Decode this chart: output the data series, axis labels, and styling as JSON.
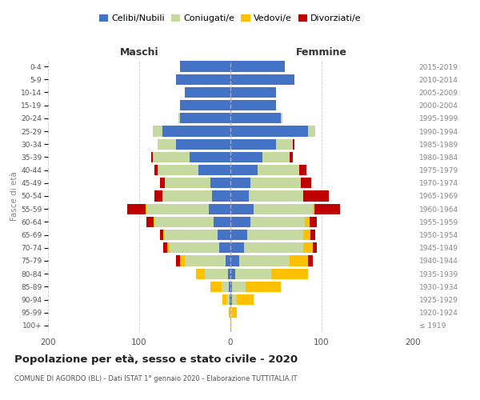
{
  "age_groups": [
    "100+",
    "95-99",
    "90-94",
    "85-89",
    "80-84",
    "75-79",
    "70-74",
    "65-69",
    "60-64",
    "55-59",
    "50-54",
    "45-49",
    "40-44",
    "35-39",
    "30-34",
    "25-29",
    "20-24",
    "15-19",
    "10-14",
    "5-9",
    "0-4"
  ],
  "birth_years": [
    "≤ 1919",
    "1920-1924",
    "1925-1929",
    "1930-1934",
    "1935-1939",
    "1940-1944",
    "1945-1949",
    "1950-1954",
    "1955-1959",
    "1960-1964",
    "1965-1969",
    "1970-1974",
    "1975-1979",
    "1980-1984",
    "1985-1989",
    "1990-1994",
    "1995-1999",
    "2000-2004",
    "2005-2009",
    "2010-2014",
    "2015-2019"
  ],
  "colors": {
    "celibi": "#4472c4",
    "coniugati": "#c5d9a0",
    "vedovi": "#ffc000",
    "divorziati": "#c00000"
  },
  "maschi": {
    "celibi": [
      0,
      0,
      1,
      2,
      3,
      5,
      12,
      14,
      18,
      24,
      20,
      22,
      35,
      45,
      60,
      75,
      55,
      55,
      50,
      60,
      55
    ],
    "coniugati": [
      0,
      0,
      3,
      8,
      25,
      45,
      55,
      58,
      65,
      68,
      55,
      50,
      45,
      40,
      20,
      10,
      2,
      0,
      0,
      0,
      0
    ],
    "vedovi": [
      0,
      2,
      5,
      12,
      10,
      5,
      2,
      2,
      1,
      1,
      0,
      0,
      0,
      0,
      0,
      0,
      0,
      0,
      0,
      0,
      0
    ],
    "divorziati": [
      0,
      0,
      0,
      0,
      0,
      5,
      5,
      3,
      8,
      20,
      8,
      5,
      3,
      2,
      0,
      0,
      0,
      0,
      0,
      0,
      0
    ]
  },
  "femmine": {
    "celibi": [
      0,
      0,
      2,
      2,
      5,
      10,
      15,
      18,
      22,
      25,
      20,
      22,
      30,
      35,
      50,
      85,
      55,
      50,
      50,
      70,
      60
    ],
    "coniugati": [
      0,
      2,
      5,
      15,
      40,
      55,
      65,
      62,
      60,
      65,
      60,
      55,
      45,
      30,
      18,
      8,
      2,
      0,
      0,
      0,
      0
    ],
    "vedovi": [
      1,
      5,
      18,
      38,
      40,
      20,
      10,
      8,
      5,
      2,
      0,
      0,
      0,
      0,
      0,
      0,
      0,
      0,
      0,
      0,
      0
    ],
    "divorziati": [
      0,
      0,
      0,
      0,
      0,
      5,
      5,
      5,
      8,
      28,
      28,
      12,
      8,
      3,
      2,
      0,
      0,
      0,
      0,
      0,
      0
    ]
  },
  "title": "Popolazione per età, sesso e stato civile - 2020",
  "subtitle": "COMUNE DI AGORDO (BL) - Dati ISTAT 1° gennaio 2020 - Elaborazione TUTTITALIA.IT",
  "xlabel_maschi": "Maschi",
  "xlabel_femmine": "Femmine",
  "ylabel": "Fasce di età",
  "xlim": 200,
  "background_color": "#ffffff",
  "grid_color": "#cccccc",
  "legend_labels": [
    "Celibi/Nubili",
    "Coniugati/e",
    "Vedovi/e",
    "Divorziati/e"
  ]
}
